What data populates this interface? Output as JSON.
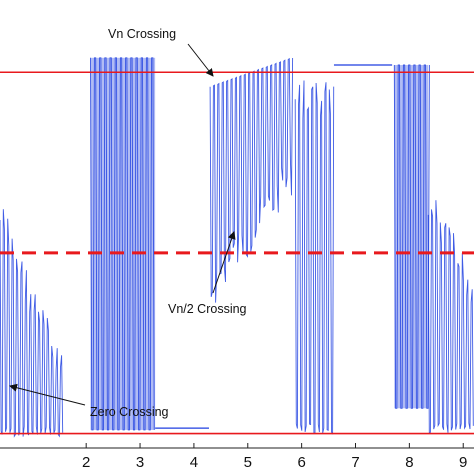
{
  "chart_data": {
    "type": "line",
    "title": "",
    "xlabel": "",
    "ylabel": "",
    "xlim": [
      0.4,
      9.2
    ],
    "ylim": [
      -0.04,
      1.2
    ],
    "x_ticks": [
      {
        "value": 2,
        "label": "2"
      },
      {
        "value": 3,
        "label": "3"
      },
      {
        "value": 4,
        "label": "4"
      },
      {
        "value": 5,
        "label": "5"
      },
      {
        "value": 6,
        "label": "6"
      },
      {
        "value": 7,
        "label": "7"
      },
      {
        "value": 8,
        "label": "8"
      },
      {
        "value": 9,
        "label": "9"
      }
    ],
    "grid": false,
    "legend": "none",
    "reference_lines": [
      {
        "id": "vn",
        "value": 1.0,
        "style": "solid",
        "color": "#e8191d"
      },
      {
        "id": "vn-half",
        "value": 0.5,
        "style": "dashed",
        "color": "#e8191d"
      },
      {
        "id": "zero",
        "value": 0.0,
        "style": "solid",
        "color": "#e8191d"
      }
    ],
    "series": [
      {
        "color": "#1f3fe0",
        "segments": [
          {
            "x0": 0.4,
            "x1": 1.55,
            "mode": "oscillating-decay",
            "high_start": 0.65,
            "high_end": 0.22,
            "low": -0.01
          },
          {
            "x0": 2.08,
            "x1": 3.28,
            "mode": "pulses",
            "high": 1.04,
            "low": 0.01
          },
          {
            "x0": 3.28,
            "x1": 4.28,
            "mode": "flat",
            "level": 0.015
          },
          {
            "x0": 4.3,
            "x1": 5.82,
            "mode": "oscillating-rise",
            "high_start": 0.96,
            "high_end": 1.04,
            "low_start": 0.46,
            "low_end": 0.78
          },
          {
            "x0": 5.88,
            "x1": 6.6,
            "mode": "oscillating-decay",
            "high_start": 0.98,
            "high_end": 0.98,
            "low": 0.0
          },
          {
            "x0": 6.6,
            "x1": 7.68,
            "mode": "flat",
            "level": 1.02
          },
          {
            "x0": 7.72,
            "x1": 8.35,
            "mode": "pulses",
            "high": 1.02,
            "low": 0.07
          },
          {
            "x0": 8.35,
            "x1": 9.2,
            "mode": "oscillating-decay",
            "high_start": 0.68,
            "high_end": 0.45,
            "low": 0.0
          }
        ]
      }
    ],
    "annotations": [
      {
        "text": "Vn Crossing",
        "x": 5.05,
        "y": 1.02
      },
      {
        "text": "Vn/2 Crossing",
        "x": 4.82,
        "y": 0.5
      },
      {
        "text": "Zero Crossing",
        "x": 0.82,
        "y": -0.01
      }
    ]
  }
}
